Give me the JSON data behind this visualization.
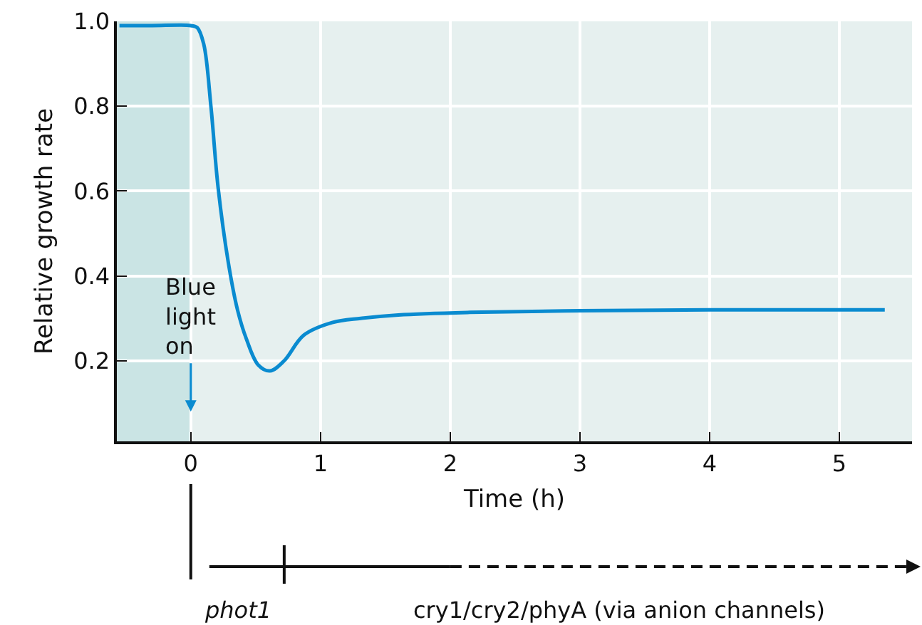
{
  "chart_data": {
    "type": "line",
    "xlabel": "Time (h)",
    "ylabel": "Relative growth rate",
    "x": [
      -0.55,
      -0.3,
      0,
      0.05,
      0.1,
      0.155,
      0.21,
      0.29,
      0.36,
      0.43,
      0.52,
      0.61,
      0.72,
      0.87,
      1.09,
      1.31,
      1.6,
      2.15,
      3,
      4,
      5.35
    ],
    "series": [
      {
        "color": "#0a8bd0",
        "values": [
          0.99,
          0.99,
          0.99,
          0.985,
          0.946,
          0.8,
          0.61,
          0.43,
          0.32,
          0.25,
          0.19,
          0.176,
          0.2,
          0.26,
          0.29,
          0.3,
          0.308,
          0.314,
          0.318,
          0.32,
          0.32
        ]
      }
    ],
    "xlim": [
      -0.57,
      5.56
    ],
    "xticks": [
      0,
      1,
      2,
      3,
      4,
      5
    ],
    "ylim": [
      0.01,
      1.0
    ],
    "yticks": [
      0.2,
      0.4,
      0.6,
      0.8,
      {
        "value": 1,
        "label": "1.0"
      }
    ],
    "grid": true,
    "legend": false,
    "marker": "none",
    "line_style": "solid",
    "bands": [
      {
        "axis": "x",
        "from": -0.57,
        "to": 0,
        "color": "#cae4e4"
      }
    ],
    "annotations": [
      {
        "text": "Blue\nlight\non",
        "x": 0,
        "y": 0.08
      },
      "phot1",
      "cry1/cry2/phyA (via anion channels)"
    ]
  }
}
